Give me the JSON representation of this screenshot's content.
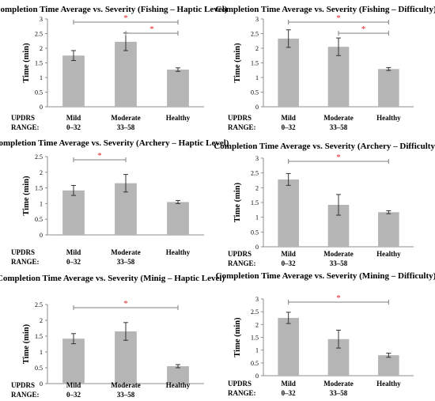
{
  "colors": {
    "bar": "#b5b5b5",
    "axis": "#8c8c8c",
    "bracket": "#7f7f7f",
    "star": "#e02020",
    "errorbar": "#333333"
  },
  "row_label": [
    "UPDRS",
    "RANGE:"
  ],
  "chart_data": [
    {
      "type": "bar",
      "title": "Completion Time Average vs. Severity (Fishing – Haptic Level)",
      "ylabel": "Time (min)",
      "ylim": [
        0,
        3
      ],
      "yticks": [
        "0",
        "0.5",
        "1",
        "1.5",
        "2",
        "2.5",
        "3"
      ],
      "categories": [
        "Mild",
        "Moderate",
        "Healthy"
      ],
      "ranges": [
        "0–32",
        "33–58",
        ""
      ],
      "values": [
        1.75,
        2.22,
        1.27
      ],
      "errors": [
        0.17,
        0.3,
        0.06
      ],
      "significance": [
        {
          "from": 0,
          "to": 2,
          "label": "*"
        },
        {
          "from": 1,
          "to": 2,
          "label": "*"
        }
      ],
      "grid": false
    },
    {
      "type": "bar",
      "title": "Completion Time Average vs. Severity (Fishing – Difficulty)",
      "ylabel": "Time (min)",
      "ylim": [
        0,
        3
      ],
      "yticks": [
        "0",
        "0.5",
        "1",
        "1.5",
        "2",
        "2.5",
        "3"
      ],
      "categories": [
        "Mild",
        "Moderate",
        "Healthy"
      ],
      "ranges": [
        "0–32",
        "33–58",
        ""
      ],
      "values": [
        2.33,
        2.05,
        1.29
      ],
      "errors": [
        0.3,
        0.3,
        0.05
      ],
      "significance": [
        {
          "from": 0,
          "to": 2,
          "label": "*"
        },
        {
          "from": 1,
          "to": 2,
          "label": "*"
        }
      ],
      "grid": false
    },
    {
      "type": "bar",
      "title": "Completion Time Average vs. Severity (Archery – Haptic Level)",
      "ylabel": "Time (min)",
      "ylim": [
        0,
        2.5
      ],
      "yticks": [
        "0",
        "0.5",
        "1",
        "1.5",
        "2",
        "2.5"
      ],
      "categories": [
        "Mild",
        "Moderate",
        "Healthy"
      ],
      "ranges": [
        "0–32",
        "33–58",
        ""
      ],
      "values": [
        1.42,
        1.65,
        1.05
      ],
      "errors": [
        0.16,
        0.28,
        0.05
      ],
      "significance": [
        {
          "from": 0,
          "to": 1,
          "label": "*"
        }
      ],
      "grid": false
    },
    {
      "type": "bar",
      "title": "Completion Time Average vs. Severity (Archery – Difficulty)",
      "ylabel": "Time (min)",
      "ylim": [
        0,
        3
      ],
      "yticks": [
        "0",
        "0.5",
        "1",
        "1.5",
        "2",
        "2.5",
        "3"
      ],
      "categories": [
        "Mild",
        "Moderate",
        "Healthy"
      ],
      "ranges": [
        "0–32",
        "33–58",
        ""
      ],
      "values": [
        2.28,
        1.42,
        1.17
      ],
      "errors": [
        0.2,
        0.35,
        0.05
      ],
      "significance": [
        {
          "from": 0,
          "to": 2,
          "label": "*"
        }
      ],
      "grid": false
    },
    {
      "type": "bar",
      "title": "Completion Time Average vs. Severity (Minig – Haptic Level)",
      "ylabel": "Time (min)",
      "ylim": [
        0,
        2.5
      ],
      "yticks": [
        "0",
        "0.5",
        "1",
        "1.5",
        "2",
        "2.5"
      ],
      "categories": [
        "Mild",
        "Moderate",
        "Healthy"
      ],
      "ranges": [
        "0–32",
        "33–58",
        ""
      ],
      "values": [
        1.42,
        1.65,
        0.55
      ],
      "errors": [
        0.16,
        0.28,
        0.05
      ],
      "significance": [
        {
          "from": 0,
          "to": 2,
          "label": "*"
        }
      ],
      "grid": false
    },
    {
      "type": "bar",
      "title": "Completion Time Average vs. Severity (Mining – Difficulty)",
      "ylabel": "Time (min)",
      "ylim": [
        0,
        3
      ],
      "yticks": [
        "0",
        "0.5",
        "1",
        "1.5",
        "2",
        "2.5",
        "3"
      ],
      "categories": [
        "Mild",
        "Moderate",
        "Healthy"
      ],
      "ranges": [
        "0–32",
        "33–58",
        ""
      ],
      "values": [
        2.26,
        1.43,
        0.8
      ],
      "errors": [
        0.22,
        0.35,
        0.08
      ],
      "significance": [
        {
          "from": 0,
          "to": 2,
          "label": "*"
        }
      ],
      "grid": false
    }
  ]
}
